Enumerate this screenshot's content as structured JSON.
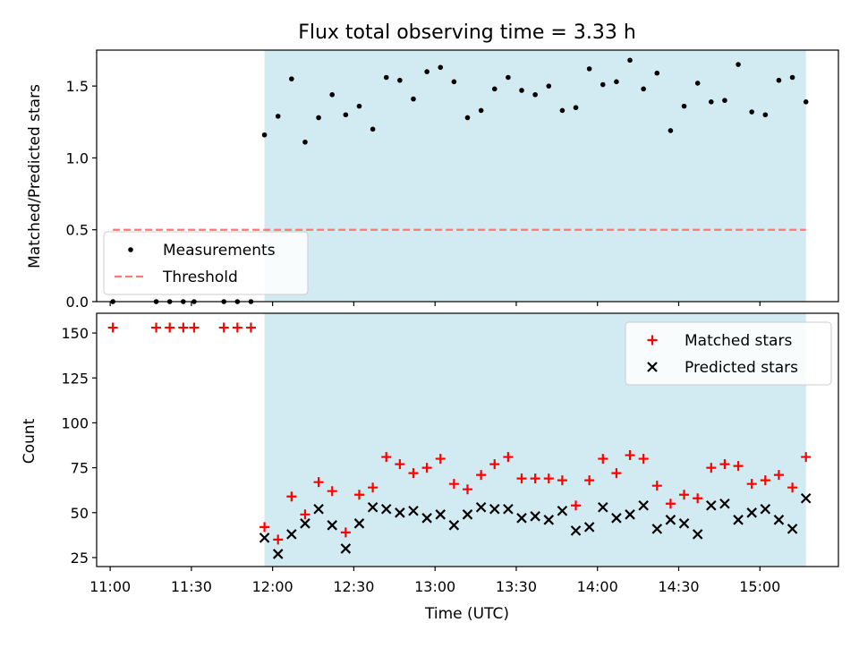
{
  "chart_data": [
    {
      "type": "scatter",
      "title": "Flux total observing time = 3.33 h",
      "xlabel": "",
      "ylabel": "Matched/Predicted stars",
      "x_tick_labels": [
        "11:00",
        "11:30",
        "12:00",
        "12:30",
        "13:00",
        "13:30",
        "14:00",
        "14:30",
        "15:00"
      ],
      "xlim": [
        "10:55",
        "15:29"
      ],
      "ylim": [
        0,
        1.75
      ],
      "y_ticks": [
        0.0,
        0.5,
        1.0,
        1.5
      ],
      "y_tick_labels": [
        "0.0",
        "0.5",
        "1.0",
        "1.5"
      ],
      "shaded_region": {
        "start": "11:57",
        "end": "15:17",
        "color": "#add8e6"
      },
      "legend_position": "lower-left",
      "series": [
        {
          "name": "Measurements",
          "style": "points",
          "color": "#000000",
          "x": [
            "11:01",
            "11:17",
            "11:22",
            "11:27",
            "11:31",
            "11:42",
            "11:47",
            "11:52",
            "11:57",
            "12:02",
            "12:07",
            "12:12",
            "12:17",
            "12:22",
            "12:27",
            "12:32",
            "12:37",
            "12:42",
            "12:47",
            "12:52",
            "12:57",
            "13:02",
            "13:07",
            "13:12",
            "13:17",
            "13:22",
            "13:27",
            "13:32",
            "13:37",
            "13:42",
            "13:47",
            "13:52",
            "13:57",
            "14:02",
            "14:07",
            "14:12",
            "14:17",
            "14:22",
            "14:27",
            "14:32",
            "14:37",
            "14:42",
            "14:47",
            "14:52",
            "14:57",
            "15:02",
            "15:07",
            "15:12",
            "15:17"
          ],
          "y": [
            0,
            0,
            0,
            0,
            0,
            0,
            0,
            0,
            1.16,
            1.29,
            1.55,
            1.11,
            1.28,
            1.44,
            1.3,
            1.36,
            1.2,
            1.56,
            1.54,
            1.41,
            1.6,
            1.63,
            1.53,
            1.28,
            1.33,
            1.48,
            1.56,
            1.47,
            1.44,
            1.5,
            1.33,
            1.35,
            1.62,
            1.51,
            1.53,
            1.68,
            1.48,
            1.59,
            1.19,
            1.36,
            1.52,
            1.39,
            1.4,
            1.65,
            1.32,
            1.3,
            1.54,
            1.56,
            1.39
          ]
        },
        {
          "name": "Threshold",
          "style": "dashed-line",
          "color": "#ff7777",
          "x": [
            "11:01",
            "15:17"
          ],
          "y": [
            0.5,
            0.5
          ]
        }
      ]
    },
    {
      "type": "scatter",
      "title": "",
      "xlabel": "Time (UTC)",
      "ylabel": "Count",
      "x_tick_labels": [
        "11:00",
        "11:30",
        "12:00",
        "12:30",
        "13:00",
        "13:30",
        "14:00",
        "14:30",
        "15:00"
      ],
      "xlim": [
        "10:55",
        "15:29"
      ],
      "ylim": [
        20,
        161
      ],
      "y_ticks": [
        25,
        50,
        75,
        100,
        125,
        150
      ],
      "y_tick_labels": [
        "25",
        "50",
        "75",
        "100",
        "125",
        "150"
      ],
      "shaded_region": {
        "start": "11:57",
        "end": "15:17",
        "color": "#add8e6"
      },
      "legend_position": "upper-right",
      "series": [
        {
          "name": "Matched stars",
          "marker": "+",
          "color": "#ff0000",
          "x": [
            "11:01",
            "11:17",
            "11:22",
            "11:27",
            "11:31",
            "11:42",
            "11:47",
            "11:52",
            "11:57",
            "12:02",
            "12:07",
            "12:12",
            "12:17",
            "12:22",
            "12:27",
            "12:32",
            "12:37",
            "12:42",
            "12:47",
            "12:52",
            "12:57",
            "13:02",
            "13:07",
            "13:12",
            "13:17",
            "13:22",
            "13:27",
            "13:32",
            "13:37",
            "13:42",
            "13:47",
            "13:52",
            "13:57",
            "14:02",
            "14:07",
            "14:12",
            "14:17",
            "14:22",
            "14:27",
            "14:32",
            "14:37",
            "14:42",
            "14:47",
            "14:52",
            "14:57",
            "15:02",
            "15:07",
            "15:12",
            "15:17"
          ],
          "y": [
            153,
            153,
            153,
            153,
            153,
            153,
            153,
            153,
            42,
            35,
            59,
            49,
            67,
            62,
            39,
            60,
            64,
            81,
            77,
            72,
            75,
            80,
            66,
            63,
            71,
            77,
            81,
            69,
            69,
            69,
            68,
            54,
            68,
            80,
            72,
            82,
            80,
            65,
            55,
            60,
            58,
            75,
            77,
            76,
            66,
            68,
            71,
            64,
            81
          ]
        },
        {
          "name": "Predicted stars",
          "marker": "x",
          "color": "#000000",
          "x": [
            "11:57",
            "12:02",
            "12:07",
            "12:12",
            "12:17",
            "12:22",
            "12:27",
            "12:32",
            "12:37",
            "12:42",
            "12:47",
            "12:52",
            "12:57",
            "13:02",
            "13:07",
            "13:12",
            "13:17",
            "13:22",
            "13:27",
            "13:32",
            "13:37",
            "13:42",
            "13:47",
            "13:52",
            "13:57",
            "14:02",
            "14:07",
            "14:12",
            "14:17",
            "14:22",
            "14:27",
            "14:32",
            "14:37",
            "14:42",
            "14:47",
            "14:52",
            "14:57",
            "15:02",
            "15:07",
            "15:12",
            "15:17"
          ],
          "y": [
            36,
            27,
            38,
            44,
            52,
            43,
            30,
            44,
            53,
            52,
            50,
            51,
            47,
            49,
            43,
            49,
            53,
            52,
            52,
            47,
            48,
            46,
            51,
            40,
            42,
            53,
            47,
            49,
            54,
            41,
            46,
            44,
            38,
            54,
            55,
            46,
            50,
            52,
            46,
            41,
            58
          ]
        }
      ]
    }
  ]
}
